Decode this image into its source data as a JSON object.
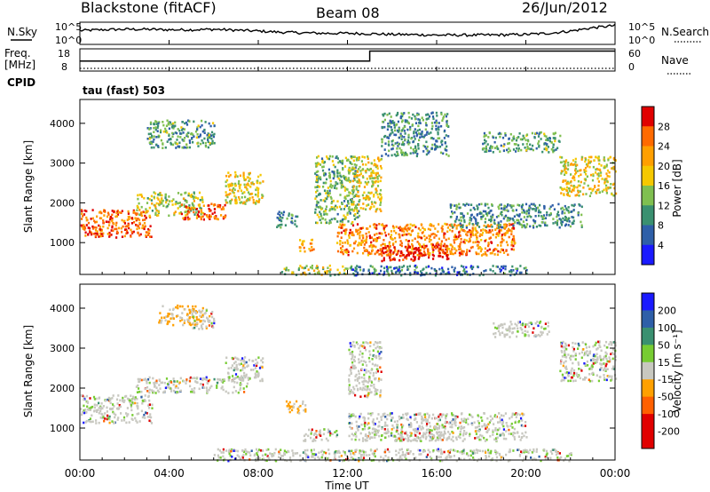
{
  "header": {
    "station": "Blackstone (fitACF)",
    "beam": "Beam 08",
    "date": "26/Jun/2012"
  },
  "chart_data": [
    {
      "type": "line",
      "panel": "noise",
      "left_label": "N.Sky",
      "right_label": "N.Search",
      "y_left_ticks": [
        "10^5",
        "10^0"
      ],
      "y_right_ticks": [
        "10^5",
        "10^0"
      ],
      "yscale": "log",
      "xlim_hours": [
        0,
        24
      ],
      "series": [
        {
          "name": "N.Sky",
          "style": "solid",
          "x": [
            0,
            1,
            2,
            3,
            4,
            5,
            6,
            7,
            8,
            9,
            10,
            11,
            12,
            13,
            14,
            15,
            16,
            17,
            18,
            19,
            20,
            21,
            22,
            23,
            24
          ],
          "y_frac": [
            0.62,
            0.66,
            0.68,
            0.68,
            0.66,
            0.66,
            0.68,
            0.64,
            0.6,
            0.55,
            0.52,
            0.5,
            0.5,
            0.48,
            0.45,
            0.44,
            0.42,
            0.42,
            0.42,
            0.43,
            0.45,
            0.5,
            0.6,
            0.75,
            0.85
          ]
        }
      ]
    },
    {
      "type": "line",
      "panel": "frequency",
      "left_label_top": "Freq.",
      "left_label_unit": "[MHz]",
      "right_label": "Nave",
      "y_left_ticks": [
        "18",
        "8"
      ],
      "y_right_ticks": [
        "60",
        "0"
      ],
      "xlim_hours": [
        0,
        24
      ],
      "series": [
        {
          "name": "Freq.",
          "style": "solid",
          "x": [
            0,
            13,
            13,
            24
          ],
          "y_frac": [
            0.45,
            0.45,
            0.9,
            0.9
          ]
        },
        {
          "name": "Nave",
          "style": "dotted",
          "x": [
            0,
            24
          ],
          "y_frac": [
            0.12,
            0.12
          ]
        }
      ]
    },
    {
      "type": "line",
      "panel": "cpid",
      "left_label": "CPID",
      "annotation": "tau (fast) 503"
    },
    {
      "type": "heatmap",
      "panel": "power",
      "ylabel": "Slant Range [km]",
      "yticks": [
        1000,
        2000,
        3000,
        4000
      ],
      "ylim": [
        200,
        4600
      ],
      "xlim_hours": [
        0,
        24
      ],
      "colorbar": {
        "label": "Power [dB]",
        "ticks": [
          "28",
          "24",
          "20",
          "16",
          "12",
          "8",
          "4"
        ],
        "colors": [
          "#e00000",
          "#ff6a00",
          "#ff9f00",
          "#f5c800",
          "#7fbf50",
          "#3a9070",
          "#2e5fa8",
          "#1a1aff"
        ]
      },
      "regions": [
        {
          "t": [
            0,
            3.2
          ],
          "r": [
            1150,
            1850
          ],
          "v": 0.8
        },
        {
          "t": [
            0.3,
            1.0
          ],
          "r": [
            1200,
            1400
          ],
          "v": 1.0
        },
        {
          "t": [
            2.5,
            5.5
          ],
          "r": [
            1700,
            2300
          ],
          "v": 0.5
        },
        {
          "t": [
            4.5,
            6.5
          ],
          "r": [
            1600,
            2000
          ],
          "v": 0.85
        },
        {
          "t": [
            6.5,
            8.2
          ],
          "r": [
            2000,
            2800
          ],
          "v": 0.55
        },
        {
          "t": [
            3.0,
            6.0
          ],
          "r": [
            3400,
            4100
          ],
          "v": 0.35
        },
        {
          "t": [
            8.8,
            9.8
          ],
          "r": [
            1400,
            1800
          ],
          "v": 0.3
        },
        {
          "t": [
            9.8,
            10.5
          ],
          "r": [
            800,
            1100
          ],
          "v": 0.65
        },
        {
          "t": [
            9.0,
            12.0
          ],
          "r": [
            200,
            450
          ],
          "v": 0.5
        },
        {
          "t": [
            10.5,
            12.5
          ],
          "r": [
            1500,
            3200
          ],
          "v": 0.4
        },
        {
          "t": [
            12.0,
            13.5
          ],
          "r": [
            1800,
            3200
          ],
          "v": 0.55
        },
        {
          "t": [
            11.5,
            19.5
          ],
          "r": [
            700,
            1500
          ],
          "v": 0.75
        },
        {
          "t": [
            13.5,
            16.5
          ],
          "r": [
            550,
            950
          ],
          "v": 0.9
        },
        {
          "t": [
            14.5,
            15.5
          ],
          "r": [
            600,
            800
          ],
          "v": 1.0
        },
        {
          "t": [
            13.5,
            16.5
          ],
          "r": [
            3200,
            4300
          ],
          "v": 0.3
        },
        {
          "t": [
            16.5,
            22.5
          ],
          "r": [
            1400,
            2000
          ],
          "v": 0.3
        },
        {
          "t": [
            18.0,
            21.5
          ],
          "r": [
            3300,
            3800
          ],
          "v": 0.35
        },
        {
          "t": [
            21.5,
            24.0
          ],
          "r": [
            2200,
            3200
          ],
          "v": 0.55
        },
        {
          "t": [
            12.0,
            20.0
          ],
          "r": [
            200,
            450
          ],
          "v": 0.25
        }
      ]
    },
    {
      "type": "heatmap",
      "panel": "velocity",
      "ylabel": "Slant Range [km]",
      "yticks": [
        1000,
        2000,
        3000,
        4000
      ],
      "ylim": [
        200,
        4600
      ],
      "xlabel": "Time UT",
      "xtick_labels": [
        "00:00",
        "04:00",
        "08:00",
        "12:00",
        "16:00",
        "20:00",
        "00:00"
      ],
      "xticks_hours": [
        0,
        4,
        8,
        12,
        16,
        20,
        24
      ],
      "xlim_hours": [
        0,
        24
      ],
      "colorbar": {
        "label": "Velocity [m s⁻¹]",
        "ticks": [
          "200",
          "100",
          "50",
          "15",
          "-15",
          "-50",
          "-100",
          "-200"
        ],
        "colors": [
          "#1a1aff",
          "#2e5fa8",
          "#3a9070",
          "#77cc33",
          "#c8c8c0",
          "#ffa000",
          "#ff6000",
          "#e00000",
          "#e00000"
        ]
      },
      "regions": [
        {
          "t": [
            0,
            3.2
          ],
          "r": [
            1150,
            1850
          ],
          "v": 0.5
        },
        {
          "t": [
            2.5,
            7.5
          ],
          "r": [
            1900,
            2300
          ],
          "v": 0.5
        },
        {
          "t": [
            6.5,
            8.2
          ],
          "r": [
            2200,
            2800
          ],
          "v": 0.5
        },
        {
          "t": [
            3.5,
            5.5
          ],
          "r": [
            3600,
            4100
          ],
          "v": 0.72
        },
        {
          "t": [
            5.0,
            6.0
          ],
          "r": [
            3500,
            4000
          ],
          "v": 0.5
        },
        {
          "t": [
            9.2,
            10.2
          ],
          "r": [
            1400,
            1700
          ],
          "v": 0.75
        },
        {
          "t": [
            10.0,
            11.5
          ],
          "r": [
            700,
            1000
          ],
          "v": 0.5
        },
        {
          "t": [
            12.0,
            13.5
          ],
          "r": [
            1800,
            3200
          ],
          "v": 0.5
        },
        {
          "t": [
            12.0,
            20.0
          ],
          "r": [
            700,
            1400
          ],
          "v": 0.5
        },
        {
          "t": [
            14.0,
            16.5
          ],
          "r": [
            700,
            900
          ],
          "v": 0.5
        },
        {
          "t": [
            21.5,
            24.0
          ],
          "r": [
            2200,
            3200
          ],
          "v": 0.5
        },
        {
          "t": [
            18.5,
            21.0
          ],
          "r": [
            3300,
            3700
          ],
          "v": 0.5
        },
        {
          "t": [
            6.0,
            22.0
          ],
          "r": [
            200,
            500
          ],
          "v": 0.35
        }
      ]
    }
  ]
}
